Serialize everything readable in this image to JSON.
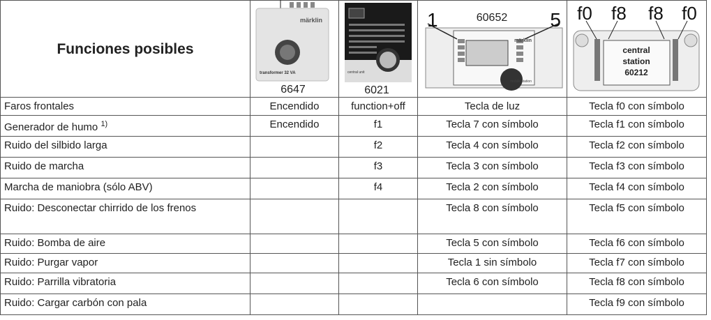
{
  "header": {
    "title": "Funciones posibles",
    "devices": [
      {
        "caption": "6647",
        "brand": "märklin",
        "model": "transformer 32 VA"
      },
      {
        "caption": "6021",
        "model": "central unit"
      },
      {
        "number": "60652",
        "keys": [
          "1",
          "5"
        ],
        "brand": "märklin",
        "model": "mobile station"
      },
      {
        "keys": [
          "f0",
          "f8",
          "f8",
          "f0"
        ],
        "label": [
          "central",
          "station",
          "60212"
        ]
      }
    ]
  },
  "table": {
    "rows": [
      [
        "Faros frontales",
        "Encendido",
        "function+off",
        "Tecla de luz",
        "Tecla f0 con símbolo"
      ],
      [
        {
          "text": "Generador de humo",
          "sup": "1)"
        },
        "Encendido",
        "f1",
        "Tecla 7 con símbolo",
        "Tecla f1 con símbolo"
      ],
      [
        "Ruido del silbido larga",
        null,
        "f2",
        "Tecla 4 con símbolo",
        "Tecla f2 con símbolo"
      ],
      [
        "Ruido de marcha",
        null,
        "f3",
        "Tecla 3 con símbolo",
        "Tecla f3 con símbolo"
      ],
      [
        "Marcha de maniobra (sólo ABV)",
        null,
        "f4",
        "Tecla 2 con símbolo",
        "Tecla f4 con símbolo"
      ],
      [
        "Ruido: Desconectar chirrido de los frenos",
        null,
        null,
        "Tecla 8 con símbolo",
        "Tecla f5 con símbolo"
      ],
      [
        "Ruido: Bomba de aire",
        null,
        null,
        "Tecla 5 con símbolo",
        "Tecla f6 con símbolo"
      ],
      [
        "Ruido: Purgar vapor",
        null,
        null,
        "Tecla 1 sin símbolo",
        "Tecla f7 con símbolo"
      ],
      [
        "Ruido: Parrilla vibratoria",
        null,
        null,
        "Tecla 6 con símbolo",
        "Tecla f8 con símbolo"
      ],
      [
        "Ruido: Cargar carbón con pala",
        null,
        null,
        null,
        "Tecla f9 con símbolo"
      ]
    ]
  }
}
